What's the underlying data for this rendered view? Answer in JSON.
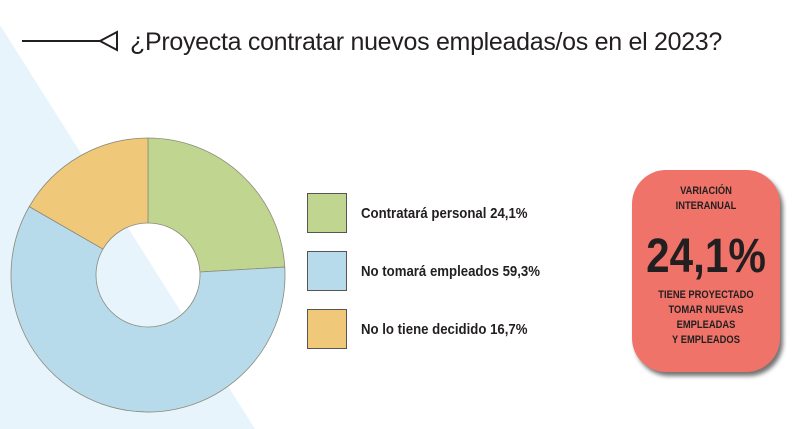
{
  "title": "¿Proyecta contratar nuevos empleadas/os en el 2023?",
  "colors": {
    "green": "#c0d690",
    "blue": "#b8dbeb",
    "yellow": "#efc879",
    "card": "#ef7369",
    "bg": "#e8f4fb"
  },
  "chart_data": {
    "type": "pie",
    "title": "¿Proyecta contratar nuevos empleadas/os en el 2023?",
    "donut": true,
    "categories": [
      "Contratará personal",
      "No tomará empleados",
      "No lo tiene decidido"
    ],
    "values": [
      24.1,
      59.3,
      16.7
    ],
    "legend_labels": [
      "Contratará personal 24,1%",
      "No tomará empleados 59,3%",
      "No lo tiene decidido 16,7%"
    ],
    "legend_placement": "right"
  },
  "card": {
    "label": [
      "VARIACIÓN",
      "INTERANUAL"
    ],
    "value": "24,1%",
    "caption": [
      "TIENE PROYECTADO",
      "TOMAR NUEVAS EMPLEADAS",
      "Y EMPLEADOS"
    ]
  }
}
